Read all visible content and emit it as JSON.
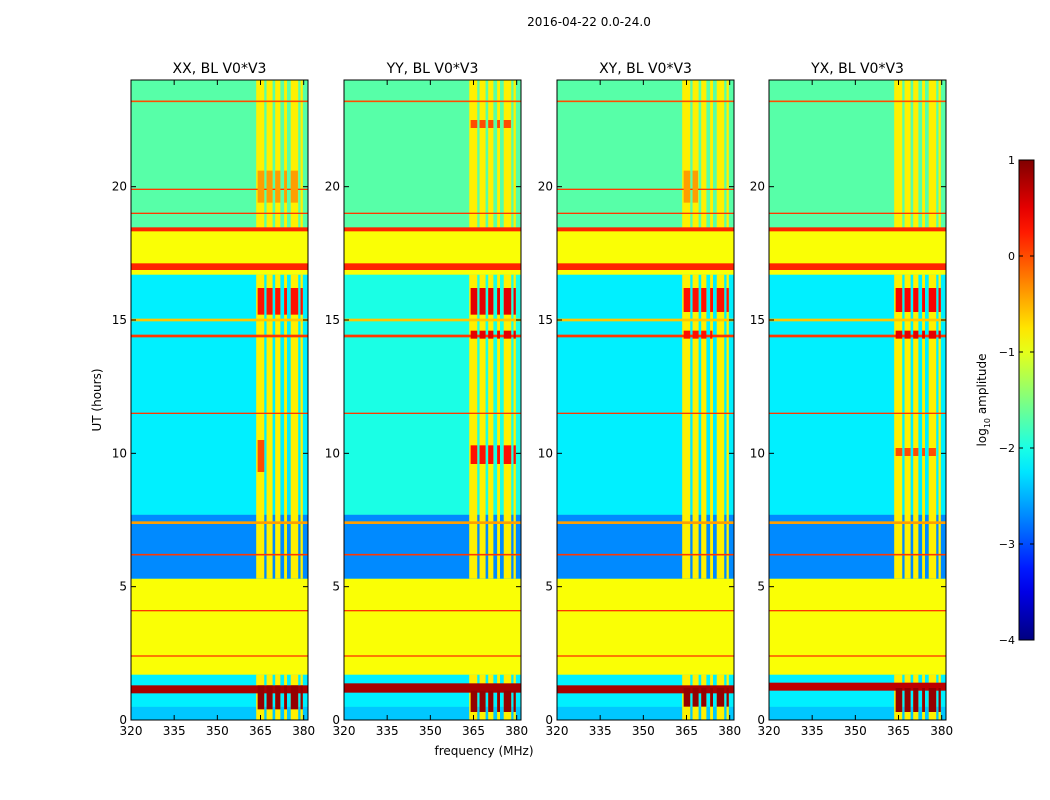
{
  "suptitle": "2016-04-22 0.0-24.0",
  "shared": {
    "xlabel": "frequency (MHz)",
    "ylabel": "UT (hours)",
    "xlim": [
      320,
      381.5
    ],
    "ylim": [
      0,
      24
    ],
    "xticks": [
      320,
      335,
      350,
      365,
      380
    ],
    "yticks": [
      0,
      5,
      10,
      15,
      20
    ]
  },
  "colorbar": {
    "label_base": "log",
    "label_sub": "10",
    "label_rest": " amplitude",
    "range": [
      -4,
      1
    ],
    "ticks": [
      1,
      0,
      -1,
      -2,
      -3,
      -4
    ],
    "colormap": "jet"
  },
  "chart_data": [
    {
      "type": "heatmap",
      "title": "XX, BL V0*V3",
      "x_range": [
        320,
        381.5
      ],
      "y_range": [
        0,
        24
      ],
      "background_level": -1.9,
      "blocks": [
        {
          "y": [
            0,
            0.5
          ],
          "level": -2.4
        },
        {
          "y": [
            0.5,
            1.7
          ],
          "level": -2.2
        },
        {
          "y": [
            1.7,
            5.3
          ],
          "level": -0.9
        },
        {
          "y": [
            5.3,
            7.7
          ],
          "level": -2.7
        },
        {
          "y": [
            7.7,
            16.7
          ],
          "level": -2.2
        },
        {
          "y": [
            16.7,
            18.4
          ],
          "level": -0.9
        },
        {
          "y": [
            18.4,
            24
          ],
          "level": -1.7
        }
      ],
      "bands": [
        {
          "y": 1.15,
          "level": 0.8,
          "width": 0.3
        },
        {
          "y": 2.4,
          "level": 0.1,
          "width": 0.05
        },
        {
          "y": 4.1,
          "level": 0.1,
          "width": 0.05
        },
        {
          "y": 6.2,
          "level": 0.1,
          "width": 0.06
        },
        {
          "y": 7.4,
          "level": -0.4,
          "width": 0.1
        },
        {
          "y": 11.5,
          "level": 0.1,
          "width": 0.05
        },
        {
          "y": 14.4,
          "level": 0.1,
          "width": 0.1
        },
        {
          "y": 15.0,
          "level": -0.6,
          "width": 0.1
        },
        {
          "y": 17.0,
          "level": 0.2,
          "width": 0.25
        },
        {
          "y": 18.4,
          "level": 0.2,
          "width": 0.15
        },
        {
          "y": 19.0,
          "level": 0.1,
          "width": 0.05
        },
        {
          "y": 19.9,
          "level": 0.1,
          "width": 0.05
        },
        {
          "y": 23.2,
          "level": 0.0,
          "width": 0.06
        }
      ],
      "rfi_columns_mhz": [
        [
          363.5,
          366.3
        ],
        [
          367.1,
          369.2
        ],
        [
          370.1,
          371.9
        ],
        [
          373.2,
          374.2
        ],
        [
          375.5,
          378.1
        ],
        [
          378.9,
          379.7
        ]
      ],
      "rfi_level": -0.8,
      "hotspots": [
        {
          "x": [
            364,
            381
          ],
          "y": [
            0.4,
            1.3
          ],
          "level": 0.9
        },
        {
          "x": [
            364,
            380
          ],
          "y": [
            15.2,
            16.2
          ],
          "level": 0.3
        },
        {
          "x": [
            364,
            367
          ],
          "y": [
            9.3,
            10.5
          ],
          "level": 0.0
        },
        {
          "x": [
            364,
            378
          ],
          "y": [
            19.4,
            20.6
          ],
          "level": -0.4
        }
      ]
    },
    {
      "type": "heatmap",
      "title": "YY, BL V0*V3",
      "x_range": [
        320,
        381.5
      ],
      "y_range": [
        0,
        24
      ],
      "background_level": -1.9,
      "blocks": [
        {
          "y": [
            0,
            0.5
          ],
          "level": -2.4
        },
        {
          "y": [
            0.5,
            1.7
          ],
          "level": -2.2
        },
        {
          "y": [
            1.7,
            5.3
          ],
          "level": -0.9
        },
        {
          "y": [
            5.3,
            7.7
          ],
          "level": -2.7
        },
        {
          "y": [
            7.7,
            16.7
          ],
          "level": -2.0
        },
        {
          "y": [
            16.7,
            18.4
          ],
          "level": -0.9
        },
        {
          "y": [
            18.4,
            24
          ],
          "level": -1.7
        }
      ],
      "bands": [
        {
          "y": 1.2,
          "level": 0.8,
          "width": 0.35
        },
        {
          "y": 2.4,
          "level": 0.1,
          "width": 0.05
        },
        {
          "y": 4.1,
          "level": 0.1,
          "width": 0.05
        },
        {
          "y": 6.2,
          "level": 0.1,
          "width": 0.06
        },
        {
          "y": 7.4,
          "level": -0.4,
          "width": 0.1
        },
        {
          "y": 11.5,
          "level": 0.1,
          "width": 0.05
        },
        {
          "y": 14.4,
          "level": 0.1,
          "width": 0.1
        },
        {
          "y": 15.0,
          "level": -0.6,
          "width": 0.1
        },
        {
          "y": 17.0,
          "level": 0.2,
          "width": 0.25
        },
        {
          "y": 18.4,
          "level": 0.2,
          "width": 0.15
        },
        {
          "y": 19.0,
          "level": 0.1,
          "width": 0.05
        },
        {
          "y": 23.2,
          "level": 0.0,
          "width": 0.06
        }
      ],
      "rfi_columns_mhz": [
        [
          363.5,
          366.3
        ],
        [
          367.1,
          369.2
        ],
        [
          370.1,
          371.9
        ],
        [
          373.2,
          374.2
        ],
        [
          375.5,
          378.1
        ],
        [
          378.9,
          379.7
        ]
      ],
      "rfi_level": -0.8,
      "hotspots": [
        {
          "x": [
            364,
            381
          ],
          "y": [
            0.3,
            1.1
          ],
          "level": 0.9
        },
        {
          "x": [
            364,
            380
          ],
          "y": [
            15.2,
            16.2
          ],
          "level": 0.5
        },
        {
          "x": [
            364,
            380
          ],
          "y": [
            9.6,
            10.3
          ],
          "level": 0.3
        },
        {
          "x": [
            364,
            380
          ],
          "y": [
            14.3,
            14.6
          ],
          "level": 0.5
        },
        {
          "x": [
            364,
            378
          ],
          "y": [
            22.2,
            22.5
          ],
          "level": 0.0
        }
      ]
    },
    {
      "type": "heatmap",
      "title": "XY, BL V0*V3",
      "x_range": [
        320,
        381.5
      ],
      "y_range": [
        0,
        24
      ],
      "background_level": -1.9,
      "blocks": [
        {
          "y": [
            0,
            0.5
          ],
          "level": -2.4
        },
        {
          "y": [
            0.5,
            1.7
          ],
          "level": -2.2
        },
        {
          "y": [
            1.7,
            5.3
          ],
          "level": -0.9
        },
        {
          "y": [
            5.3,
            7.7
          ],
          "level": -2.7
        },
        {
          "y": [
            7.7,
            16.7
          ],
          "level": -2.2
        },
        {
          "y": [
            16.7,
            18.4
          ],
          "level": -0.9
        },
        {
          "y": [
            18.4,
            24
          ],
          "level": -1.7
        }
      ],
      "bands": [
        {
          "y": 1.15,
          "level": 0.8,
          "width": 0.3
        },
        {
          "y": 2.4,
          "level": 0.1,
          "width": 0.05
        },
        {
          "y": 4.1,
          "level": 0.1,
          "width": 0.05
        },
        {
          "y": 6.2,
          "level": 0.1,
          "width": 0.06
        },
        {
          "y": 7.4,
          "level": -0.4,
          "width": 0.1
        },
        {
          "y": 11.5,
          "level": 0.1,
          "width": 0.05
        },
        {
          "y": 14.4,
          "level": 0.1,
          "width": 0.1
        },
        {
          "y": 15.0,
          "level": -0.6,
          "width": 0.1
        },
        {
          "y": 17.0,
          "level": 0.2,
          "width": 0.25
        },
        {
          "y": 18.4,
          "level": 0.2,
          "width": 0.15
        },
        {
          "y": 19.0,
          "level": 0.1,
          "width": 0.05
        },
        {
          "y": 19.9,
          "level": 0.1,
          "width": 0.05
        },
        {
          "y": 23.2,
          "level": 0.0,
          "width": 0.06
        }
      ],
      "rfi_columns_mhz": [
        [
          363.5,
          366.3
        ],
        [
          367.1,
          369.2
        ],
        [
          370.1,
          371.9
        ],
        [
          373.2,
          374.2
        ],
        [
          375.5,
          378.1
        ],
        [
          378.9,
          379.7
        ]
      ],
      "rfi_level": -0.8,
      "hotspots": [
        {
          "x": [
            364,
            380
          ],
          "y": [
            0.5,
            1.2
          ],
          "level": 0.9
        },
        {
          "x": [
            364,
            380
          ],
          "y": [
            15.3,
            16.2
          ],
          "level": 0.3
        },
        {
          "x": [
            364,
            374
          ],
          "y": [
            14.3,
            14.6
          ],
          "level": 0.3
        },
        {
          "x": [
            364,
            369
          ],
          "y": [
            19.4,
            20.6
          ],
          "level": -0.4
        }
      ]
    },
    {
      "type": "heatmap",
      "title": "YX, BL V0*V3",
      "x_range": [
        320,
        381.5
      ],
      "y_range": [
        0,
        24
      ],
      "background_level": -1.9,
      "blocks": [
        {
          "y": [
            0,
            0.5
          ],
          "level": -2.4
        },
        {
          "y": [
            0.5,
            1.7
          ],
          "level": -2.2
        },
        {
          "y": [
            1.7,
            5.3
          ],
          "level": -0.9
        },
        {
          "y": [
            5.3,
            7.7
          ],
          "level": -2.7
        },
        {
          "y": [
            7.7,
            16.7
          ],
          "level": -2.2
        },
        {
          "y": [
            16.7,
            18.4
          ],
          "level": -0.9
        },
        {
          "y": [
            18.4,
            24
          ],
          "level": -1.7
        }
      ],
      "bands": [
        {
          "y": 1.25,
          "level": 0.7,
          "width": 0.3
        },
        {
          "y": 2.4,
          "level": 0.1,
          "width": 0.05
        },
        {
          "y": 4.1,
          "level": 0.1,
          "width": 0.05
        },
        {
          "y": 6.2,
          "level": 0.1,
          "width": 0.06
        },
        {
          "y": 7.4,
          "level": -0.4,
          "width": 0.1
        },
        {
          "y": 11.5,
          "level": 0.1,
          "width": 0.05
        },
        {
          "y": 14.4,
          "level": 0.1,
          "width": 0.1
        },
        {
          "y": 15.0,
          "level": -0.6,
          "width": 0.1
        },
        {
          "y": 17.0,
          "level": 0.2,
          "width": 0.25
        },
        {
          "y": 18.4,
          "level": 0.2,
          "width": 0.15
        },
        {
          "y": 19.0,
          "level": 0.1,
          "width": 0.05
        },
        {
          "y": 23.2,
          "level": 0.0,
          "width": 0.06
        }
      ],
      "rfi_columns_mhz": [
        [
          363.5,
          366.3
        ],
        [
          367.1,
          369.2
        ],
        [
          370.1,
          371.9
        ],
        [
          373.2,
          374.2
        ],
        [
          375.5,
          378.1
        ],
        [
          378.9,
          379.7
        ]
      ],
      "rfi_level": -0.8,
      "hotspots": [
        {
          "x": [
            364,
            380
          ],
          "y": [
            0.3,
            1.2
          ],
          "level": 0.9
        },
        {
          "x": [
            364,
            380
          ],
          "y": [
            15.3,
            16.2
          ],
          "level": 0.4
        },
        {
          "x": [
            364,
            380
          ],
          "y": [
            14.3,
            14.6
          ],
          "level": 0.5
        },
        {
          "x": [
            364,
            378
          ],
          "y": [
            9.9,
            10.2
          ],
          "level": 0.0
        }
      ]
    }
  ]
}
